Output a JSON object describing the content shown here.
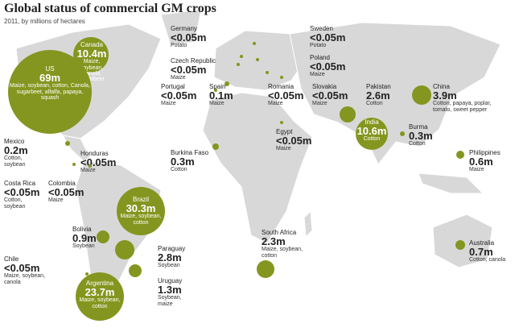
{
  "title": "Global status of commercial GM crops",
  "subtitle": "2011, by millions of hectares",
  "countries": [
    {
      "name": "Canada",
      "value": "10.4m",
      "crops": "Maize, soybean, Canola, sugarbeet"
    },
    {
      "name": "US",
      "value": "69m",
      "crops": "Maize, soybean, cotton, Canola, sugarbeet, alfalfa, papaya, squash"
    },
    {
      "name": "Mexico",
      "value": "0.2m",
      "crops": "Cotton, soybean"
    },
    {
      "name": "Honduras",
      "value": "<0.05m",
      "crops": "Maize"
    },
    {
      "name": "Costa Rica",
      "value": "<0.05m",
      "crops": "Cotton, soybean"
    },
    {
      "name": "Colombia",
      "value": "<0.05m",
      "crops": "Maize"
    },
    {
      "name": "Brazil",
      "value": "30.3m",
      "crops": "Maize, soybean, cotton"
    },
    {
      "name": "Bolivia",
      "value": "0.9m",
      "crops": "Soybean"
    },
    {
      "name": "Paraguay",
      "value": "2.8m",
      "crops": "Soybean"
    },
    {
      "name": "Chile",
      "value": "<0.05m",
      "crops": "Maize, soybean, canola"
    },
    {
      "name": "Argentina",
      "value": "23.7m",
      "crops": "Maize, soybean, cotton"
    },
    {
      "name": "Uruguay",
      "value": "1.3m",
      "crops": "Soybean, maize"
    },
    {
      "name": "Germany",
      "value": "<0.05m",
      "crops": "Potato"
    },
    {
      "name": "Czech Republic",
      "value": "<0.05m",
      "crops": "Maize"
    },
    {
      "name": "Portugal",
      "value": "<0.05m",
      "crops": "Maize"
    },
    {
      "name": "Spain",
      "value": "0.1m",
      "crops": "Maize"
    },
    {
      "name": "Romania",
      "value": "<0.05m",
      "crops": "Maize"
    },
    {
      "name": "Slovakia",
      "value": "<0.05m",
      "crops": "Maize"
    },
    {
      "name": "Sweden",
      "value": "<0.05m",
      "crops": "Potato"
    },
    {
      "name": "Poland",
      "value": "<0.05m",
      "crops": "Maize"
    },
    {
      "name": "Egypt",
      "value": "<0.05m",
      "crops": "Maize"
    },
    {
      "name": "Burkina Faso",
      "value": "0.3m",
      "crops": "Cotton"
    },
    {
      "name": "South Africa",
      "value": "2.3m",
      "crops": "Maize, soybean, cotton"
    },
    {
      "name": "Pakistan",
      "value": "2.6m",
      "crops": "Cotton"
    },
    {
      "name": "India",
      "value": "10.6m",
      "crops": "Cotton"
    },
    {
      "name": "China",
      "value": "3.9m",
      "crops": "Cotton, papaya, poplar, tomato, sweet pepper"
    },
    {
      "name": "Burma",
      "value": "0.3m",
      "crops": "Cotton"
    },
    {
      "name": "Philippines",
      "value": "0.6m",
      "crops": "Maize"
    },
    {
      "name": "Australia",
      "value": "0.7m",
      "crops": "Cotton, canola"
    }
  ]
}
